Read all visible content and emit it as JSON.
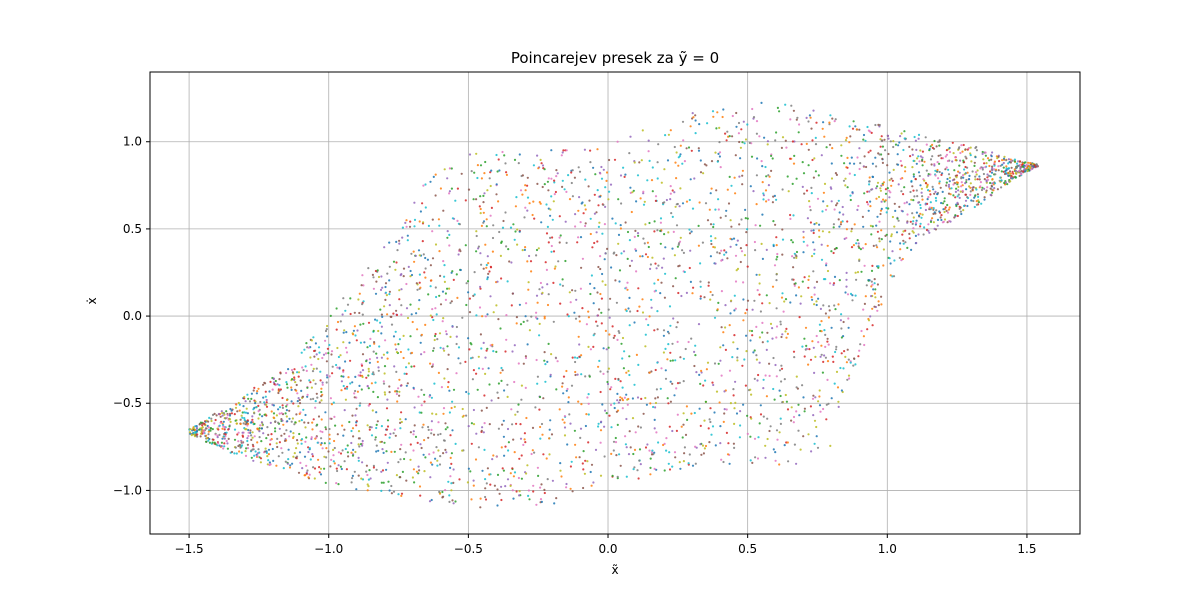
{
  "chart_data": {
    "type": "scatter",
    "title": "Poincarejev presek za ỹ = 0",
    "xlabel": "x̃",
    "ylabel": "ẋ",
    "xlim": [
      -1.64,
      1.69
    ],
    "ylim": [
      -1.25,
      1.4
    ],
    "x_ticks": [
      -1.5,
      -1.0,
      -0.5,
      0.0,
      0.5,
      1.0,
      1.5
    ],
    "x_tick_labels": [
      "−1.5",
      "−1.0",
      "−0.5",
      "0.0",
      "0.5",
      "1.0",
      "1.5"
    ],
    "y_ticks": [
      -1.0,
      -0.5,
      0.0,
      0.5,
      1.0
    ],
    "y_tick_labels": [
      "−1.0",
      "−0.5",
      "0.0",
      "0.5",
      "1.0"
    ],
    "grid": true,
    "marker_size": 2,
    "point_alpha": 0.85,
    "series_colors": [
      "#1f77b4",
      "#ff7f0e",
      "#2ca02c",
      "#d62728",
      "#9467bd",
      "#8c564b",
      "#e377c2",
      "#7f7f7f",
      "#bcbd22",
      "#17becf"
    ],
    "point_count": 4000,
    "region_boundary": {
      "lower_edge": [
        [
          -1.5,
          -0.68
        ],
        [
          -1.3,
          -0.82
        ],
        [
          -1.0,
          -0.97
        ],
        [
          -0.8,
          -1.03
        ],
        [
          -0.5,
          -1.1
        ],
        [
          -0.2,
          -1.08
        ],
        [
          0.0,
          -0.98
        ],
        [
          0.25,
          -0.88
        ],
        [
          0.5,
          -0.84
        ],
        [
          0.65,
          -0.86
        ],
        [
          0.8,
          -0.78
        ],
        [
          0.82,
          -0.6
        ],
        [
          0.85,
          -0.42
        ],
        [
          0.95,
          -0.05
        ],
        [
          1.05,
          0.3
        ],
        [
          1.12,
          0.45
        ],
        [
          1.3,
          0.6
        ],
        [
          1.45,
          0.78
        ],
        [
          1.54,
          0.86
        ]
      ],
      "upper_edge": [
        [
          -1.5,
          -0.65
        ],
        [
          -1.3,
          -0.45
        ],
        [
          -1.15,
          -0.28
        ],
        [
          -1.0,
          0.0
        ],
        [
          -0.85,
          0.3
        ],
        [
          -0.75,
          0.5
        ],
        [
          -0.65,
          0.78
        ],
        [
          -0.5,
          0.93
        ],
        [
          -0.2,
          0.97
        ],
        [
          0.0,
          0.98
        ],
        [
          0.1,
          1.05
        ],
        [
          0.25,
          1.15
        ],
        [
          0.5,
          1.24
        ],
        [
          0.7,
          1.2
        ],
        [
          0.85,
          1.13
        ],
        [
          1.0,
          1.1
        ],
        [
          1.15,
          1.02
        ],
        [
          1.3,
          0.98
        ],
        [
          1.45,
          0.9
        ],
        [
          1.54,
          0.87
        ]
      ]
    }
  }
}
